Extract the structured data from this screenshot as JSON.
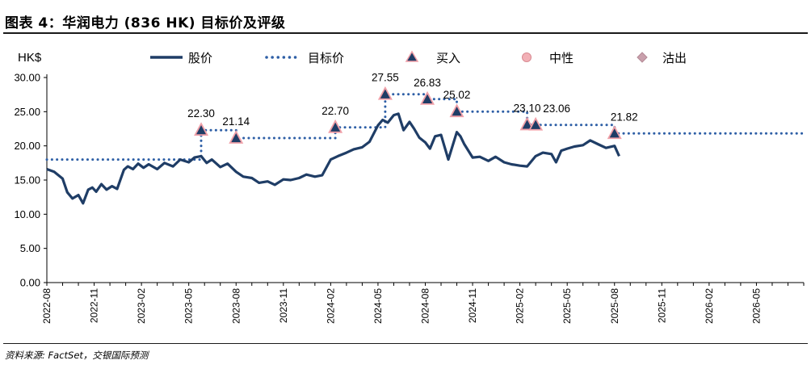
{
  "header": {
    "title": "图表 4：华润电力 (836 HK) 目标价及评级"
  },
  "footer": {
    "source": "资料来源: FactSet，交银国际预测"
  },
  "colors": {
    "price_line": "#1f3d66",
    "target_dots": "#2e5fa6",
    "buy_fill": "#1f3d66",
    "buy_edge": "#f0a0a8",
    "neutral_fill": "#f2b0b6",
    "sell_fill": "#c9a0ac"
  },
  "chart_data": {
    "type": "line",
    "ylabel": "HK$",
    "ylim": [
      0,
      30
    ],
    "yticks": [
      "0.00",
      "5.00",
      "10.00",
      "15.00",
      "20.00",
      "25.00",
      "30.00"
    ],
    "xlim": [
      "2022-08",
      "2026-08"
    ],
    "xticks": [
      "2022-08",
      "2022-11",
      "2023-02",
      "2023-05",
      "2023-08",
      "2023-11",
      "2024-02",
      "2024-05",
      "2024-08",
      "2024-11",
      "2025-02",
      "2025-05",
      "2025-08",
      "2025-11",
      "2026-02",
      "2026-05"
    ],
    "legend": {
      "placement": "top",
      "entries": [
        {
          "label": "股价",
          "marker": "line"
        },
        {
          "label": "目标价",
          "marker": "dotted"
        },
        {
          "label": "买入",
          "marker": "triangle"
        },
        {
          "label": "中性",
          "marker": "circle"
        },
        {
          "label": "沽出",
          "marker": "diamond"
        }
      ]
    },
    "series": [
      {
        "name": "股价",
        "x": [
          "2022-08-01",
          "2022-08-15",
          "2022-09-01",
          "2022-09-10",
          "2022-09-20",
          "2022-10-01",
          "2022-10-10",
          "2022-10-20",
          "2022-10-28",
          "2022-11-05",
          "2022-11-15",
          "2022-11-25",
          "2022-12-05",
          "2022-12-15",
          "2022-12-28",
          "2023-01-05",
          "2023-01-15",
          "2023-01-25",
          "2023-02-05",
          "2023-02-15",
          "2023-03-01",
          "2023-03-15",
          "2023-04-01",
          "2023-04-15",
          "2023-05-01",
          "2023-05-12",
          "2023-05-25",
          "2023-06-05",
          "2023-06-15",
          "2023-07-01",
          "2023-07-15",
          "2023-08-01",
          "2023-08-15",
          "2023-09-01",
          "2023-09-15",
          "2023-10-01",
          "2023-10-15",
          "2023-11-01",
          "2023-11-15",
          "2023-12-01",
          "2023-12-15",
          "2024-01-01",
          "2024-01-15",
          "2024-02-01",
          "2024-02-15",
          "2024-03-01",
          "2024-03-15",
          "2024-04-01",
          "2024-04-15",
          "2024-05-01",
          "2024-05-10",
          "2024-05-20",
          "2024-06-01",
          "2024-06-10",
          "2024-06-20",
          "2024-07-01",
          "2024-07-10",
          "2024-07-20",
          "2024-08-01",
          "2024-08-10",
          "2024-08-20",
          "2024-09-01",
          "2024-09-15",
          "2024-10-01",
          "2024-10-08",
          "2024-10-15",
          "2024-11-01",
          "2024-11-15",
          "2024-12-01",
          "2024-12-15",
          "2025-01-01",
          "2025-01-15",
          "2025-02-01",
          "2025-02-15",
          "2025-03-01",
          "2025-03-15",
          "2025-04-01",
          "2025-04-10",
          "2025-04-20",
          "2025-05-01",
          "2025-05-15",
          "2025-06-01",
          "2025-06-15",
          "2025-07-01",
          "2025-07-15",
          "2025-08-01",
          "2025-08-10"
        ],
        "values": [
          16.6,
          16.2,
          15.2,
          13.2,
          12.3,
          12.8,
          11.6,
          13.6,
          13.9,
          13.3,
          14.4,
          13.6,
          14.1,
          13.7,
          16.5,
          17.0,
          16.6,
          17.4,
          16.8,
          17.3,
          16.6,
          17.5,
          17.0,
          18.0,
          17.6,
          18.3,
          18.5,
          17.5,
          18.0,
          16.9,
          17.4,
          16.2,
          15.5,
          15.3,
          14.6,
          14.8,
          14.3,
          15.1,
          15.0,
          15.3,
          15.8,
          15.5,
          15.7,
          18.0,
          18.5,
          19.0,
          19.5,
          19.8,
          20.6,
          23.0,
          23.8,
          23.4,
          24.5,
          24.7,
          22.3,
          23.5,
          22.5,
          21.2,
          20.5,
          19.6,
          21.4,
          21.6,
          18.0,
          22.0,
          21.4,
          20.3,
          18.3,
          18.4,
          17.8,
          18.4,
          17.6,
          17.3,
          17.1,
          17.0,
          18.5,
          19.0,
          18.8,
          17.6,
          19.3,
          19.6,
          19.9,
          20.1,
          20.8,
          20.2,
          19.7,
          20.0,
          18.5
        ]
      },
      {
        "name": "目标价",
        "steps": [
          {
            "from": "2022-08-01",
            "to": "2023-05-25",
            "value": 18.0
          },
          {
            "from": "2023-05-25",
            "to": "2023-08-01",
            "value": 22.3
          },
          {
            "from": "2023-08-01",
            "to": "2024-02-10",
            "value": 21.14
          },
          {
            "from": "2024-02-10",
            "to": "2024-05-15",
            "value": 22.7
          },
          {
            "from": "2024-05-15",
            "to": "2024-08-05",
            "value": 27.55
          },
          {
            "from": "2024-08-05",
            "to": "2024-10-01",
            "value": 26.83
          },
          {
            "from": "2024-10-01",
            "to": "2025-02-15",
            "value": 25.02
          },
          {
            "from": "2025-02-15",
            "to": "2025-03-01",
            "value": 23.1
          },
          {
            "from": "2025-03-01",
            "to": "2025-08-01",
            "value": 23.06
          },
          {
            "from": "2025-08-01",
            "to": "2026-08-01",
            "value": 21.82
          }
        ]
      }
    ],
    "ratings": [
      {
        "date": "2023-05-25",
        "rating": "买入",
        "target": 22.3,
        "label": "22.30"
      },
      {
        "date": "2023-08-01",
        "rating": "买入",
        "target": 21.14,
        "label": "21.14"
      },
      {
        "date": "2024-02-10",
        "rating": "买入",
        "target": 22.7,
        "label": "22.70"
      },
      {
        "date": "2024-05-15",
        "rating": "买入",
        "target": 27.55,
        "label": "27.55"
      },
      {
        "date": "2024-08-05",
        "rating": "买入",
        "target": 26.83,
        "label": "26.83"
      },
      {
        "date": "2024-10-01",
        "rating": "买入",
        "target": 25.02,
        "label": "25.02"
      },
      {
        "date": "2025-02-15",
        "rating": "买入",
        "target": 23.1,
        "label": "23.10"
      },
      {
        "date": "2025-03-01",
        "rating": "买入",
        "target": 23.06,
        "label": "23.06"
      },
      {
        "date": "2025-08-01",
        "rating": "买入",
        "target": 21.82,
        "label": "21.82"
      }
    ]
  }
}
